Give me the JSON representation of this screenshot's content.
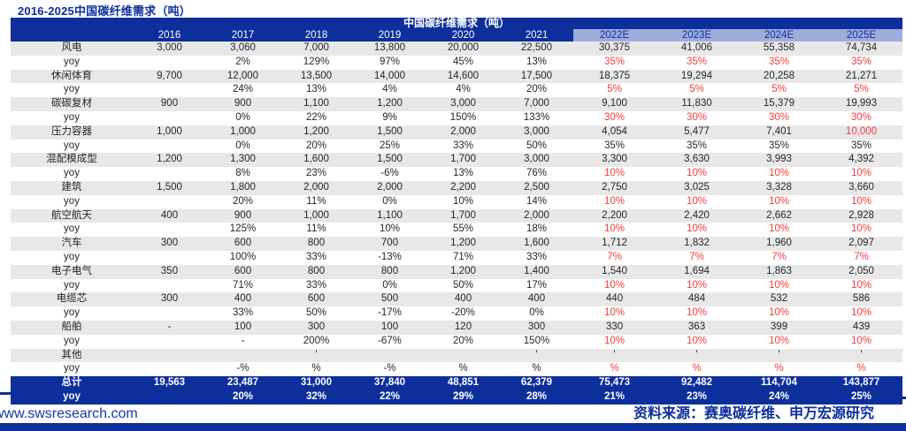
{
  "page_title": "2016-2025中国碳纤维需求（吨）",
  "table": {
    "header_title": "中国碳纤维需求（吨）",
    "columns": [
      "2016",
      "2017",
      "2018",
      "2019",
      "2020",
      "2021",
      "2022E",
      "2023E",
      "2024E",
      "2025E"
    ],
    "estimate_columns_start": 6,
    "rows": [
      {
        "label": "风电",
        "type": "category",
        "values": [
          "3,000",
          "3,060",
          "7,000",
          "13,800",
          "20,000",
          "22,500",
          "30,375",
          "41,006",
          "55,358",
          "74,734"
        ],
        "red": []
      },
      {
        "label": "yoy",
        "type": "yoy",
        "values": [
          "",
          "2%",
          "129%",
          "97%",
          "45%",
          "13%",
          "35%",
          "35%",
          "35%",
          "35%"
        ],
        "red": [
          6,
          7,
          8,
          9
        ]
      },
      {
        "label": "休闲体育",
        "type": "category",
        "values": [
          "9,700",
          "12,000",
          "13,500",
          "14,000",
          "14,600",
          "17,500",
          "18,375",
          "19,294",
          "20,258",
          "21,271"
        ],
        "red": []
      },
      {
        "label": "yoy",
        "type": "yoy",
        "values": [
          "",
          "24%",
          "13%",
          "4%",
          "4%",
          "20%",
          "5%",
          "5%",
          "5%",
          "5%"
        ],
        "red": [
          6,
          7,
          8,
          9
        ]
      },
      {
        "label": "碳碳复材",
        "type": "category",
        "values": [
          "900",
          "900",
          "1,100",
          "1,200",
          "3,000",
          "7,000",
          "9,100",
          "11,830",
          "15,379",
          "19,993"
        ],
        "red": []
      },
      {
        "label": "yoy",
        "type": "yoy",
        "values": [
          "",
          "0%",
          "22%",
          "9%",
          "150%",
          "133%",
          "30%",
          "30%",
          "30%",
          "30%"
        ],
        "red": [
          6,
          7,
          8,
          9
        ]
      },
      {
        "label": "压力容器",
        "type": "category",
        "values": [
          "1,000",
          "1,000",
          "1,200",
          "1,500",
          "2,000",
          "3,000",
          "4,054",
          "5,477",
          "7,401",
          "10,000"
        ],
        "red": [
          9
        ]
      },
      {
        "label": "yoy",
        "type": "yoy",
        "values": [
          "",
          "0%",
          "20%",
          "25%",
          "33%",
          "50%",
          "35%",
          "35%",
          "35%",
          "35%"
        ],
        "red": []
      },
      {
        "label": "混配模成型",
        "type": "category",
        "values": [
          "1,200",
          "1,300",
          "1,600",
          "1,500",
          "1,700",
          "3,000",
          "3,300",
          "3,630",
          "3,993",
          "4,392"
        ],
        "red": []
      },
      {
        "label": "yoy",
        "type": "yoy",
        "values": [
          "",
          "8%",
          "23%",
          "-6%",
          "13%",
          "76%",
          "10%",
          "10%",
          "10%",
          "10%"
        ],
        "red": [
          6,
          7,
          8,
          9
        ]
      },
      {
        "label": "建筑",
        "type": "category",
        "values": [
          "1,500",
          "1,800",
          "2,000",
          "2,000",
          "2,200",
          "2,500",
          "2,750",
          "3,025",
          "3,328",
          "3,660"
        ],
        "red": []
      },
      {
        "label": "yoy",
        "type": "yoy",
        "values": [
          "",
          "20%",
          "11%",
          "0%",
          "10%",
          "14%",
          "10%",
          "10%",
          "10%",
          "10%"
        ],
        "red": [
          6,
          7,
          8,
          9
        ]
      },
      {
        "label": "航空航天",
        "type": "category",
        "values": [
          "400",
          "900",
          "1,000",
          "1,100",
          "1,700",
          "2,000",
          "2,200",
          "2,420",
          "2,662",
          "2,928"
        ],
        "red": []
      },
      {
        "label": "yoy",
        "type": "yoy",
        "values": [
          "",
          "125%",
          "11%",
          "10%",
          "55%",
          "18%",
          "10%",
          "10%",
          "10%",
          "10%"
        ],
        "red": [
          6,
          7,
          8,
          9
        ]
      },
      {
        "label": "汽车",
        "type": "category",
        "values": [
          "300",
          "600",
          "800",
          "700",
          "1,200",
          "1,600",
          "1,712",
          "1,832",
          "1,960",
          "2,097"
        ],
        "red": []
      },
      {
        "label": "yoy",
        "type": "yoy",
        "values": [
          "",
          "100%",
          "33%",
          "-13%",
          "71%",
          "33%",
          "7%",
          "7%",
          "7%",
          "7%"
        ],
        "red": [
          6,
          7,
          8,
          9
        ]
      },
      {
        "label": "电子电气",
        "type": "category",
        "values": [
          "350",
          "600",
          "800",
          "800",
          "1,200",
          "1,400",
          "1,540",
          "1,694",
          "1,863",
          "2,050"
        ],
        "red": []
      },
      {
        "label": "yoy",
        "type": "yoy",
        "values": [
          "",
          "71%",
          "33%",
          "0%",
          "50%",
          "17%",
          "10%",
          "10%",
          "10%",
          "10%"
        ],
        "red": [
          6,
          7,
          8,
          9
        ]
      },
      {
        "label": "电缆芯",
        "type": "category",
        "values": [
          "300",
          "400",
          "600",
          "500",
          "400",
          "400",
          "440",
          "484",
          "532",
          "586"
        ],
        "red": []
      },
      {
        "label": "yoy",
        "type": "yoy",
        "values": [
          "",
          "33%",
          "50%",
          "-17%",
          "-20%",
          "0%",
          "10%",
          "10%",
          "10%",
          "10%"
        ],
        "red": [
          6,
          7,
          8,
          9
        ]
      },
      {
        "label": "船舶",
        "type": "category",
        "values": [
          "-",
          "100",
          "300",
          "100",
          "120",
          "300",
          "330",
          "363",
          "399",
          "439"
        ],
        "red": []
      },
      {
        "label": "yoy",
        "type": "yoy",
        "values": [
          "",
          "-",
          "200%",
          "-67%",
          "20%",
          "150%",
          "10%",
          "10%",
          "10%",
          "10%"
        ],
        "red": [
          6,
          7,
          8,
          9
        ]
      },
      {
        "label": "其他",
        "type": "category",
        "values": [
          "",
          "",
          "'",
          "",
          "",
          "'",
          "'",
          "'",
          "'",
          "'"
        ],
        "red": []
      },
      {
        "label": "yoy",
        "type": "yoy",
        "values": [
          "",
          "-%",
          "%",
          "-%",
          "%",
          "%",
          "%",
          "%",
          "%",
          "%"
        ],
        "red": [
          6,
          7,
          8,
          9
        ]
      },
      {
        "label": "总计",
        "type": "total",
        "values": [
          "19,563",
          "23,487",
          "31,000",
          "37,840",
          "48,851",
          "62,379",
          "75,473",
          "92,482",
          "114,704",
          "143,877"
        ],
        "red": []
      },
      {
        "label": "yoy",
        "type": "total-yoy",
        "values": [
          "",
          "20%",
          "32%",
          "22%",
          "29%",
          "28%",
          "21%",
          "23%",
          "24%",
          "25%"
        ],
        "red": []
      }
    ]
  },
  "footer": {
    "website": "www.swsresearch.com",
    "source": "资料来源：赛奥碳纤维、申万宏源研究"
  },
  "colors": {
    "navy": "#0D2F9B",
    "estimate_header_blue": "#9DAEDC",
    "row_stripe_gray": "#E8E8E8",
    "estimate_red": "#F83B3B"
  }
}
